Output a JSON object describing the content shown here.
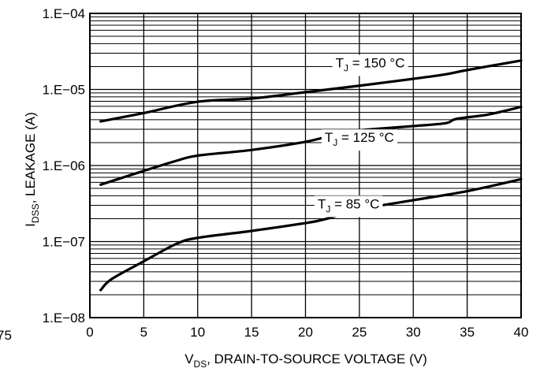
{
  "chart_data": {
    "type": "line",
    "title": "",
    "xlabel": {
      "main": "V",
      "sub": "DS",
      "rest": ", DRAIN-TO-SOURCE VOLTAGE (V)"
    },
    "ylabel": {
      "main": "I",
      "sub": "DSS",
      "rest": ", LEAKAGE (A)"
    },
    "xlim": [
      0,
      40
    ],
    "ylim": [
      1e-08,
      0.0001
    ],
    "yscale": "log",
    "grid": true,
    "x_ticks": [
      0,
      5,
      10,
      15,
      20,
      25,
      30,
      35,
      40
    ],
    "x_tick_labels": [
      "0",
      "5",
      "10",
      "15",
      "20",
      "25",
      "30",
      "35",
      "40"
    ],
    "y_ticks": [
      1e-08,
      1e-07,
      1e-06,
      1e-05,
      0.0001
    ],
    "y_tick_labels": [
      "1.E−08",
      "1.E−07",
      "1.E−06",
      "1.E−05",
      "1.E−04"
    ],
    "left_edge_fragment": "75",
    "series": [
      {
        "name": "T_J = 150 °C",
        "label": {
          "pre": "T",
          "sub": "J",
          "post": " = 150 °C"
        },
        "x": [
          1,
          5,
          10,
          15,
          20,
          25,
          30,
          33,
          35,
          40
        ],
        "y": [
          3.8e-06,
          4.9e-06,
          6.9e-06,
          7.6e-06,
          9.2e-06,
          1.12e-05,
          1.38e-05,
          1.58e-05,
          1.8e-05,
          2.4e-05
        ]
      },
      {
        "name": "T_J = 125 °C",
        "label": {
          "pre": "T",
          "sub": "J",
          "post": " = 125 °C"
        },
        "x": [
          1,
          5,
          8,
          10,
          15,
          20,
          23,
          25,
          30,
          33,
          34,
          37,
          40
        ],
        "y": [
          5.6e-07,
          8.5e-07,
          1.15e-06,
          1.35e-06,
          1.6e-06,
          2.05e-06,
          2.6e-06,
          2.9e-06,
          3.3e-06,
          3.6e-06,
          4.1e-06,
          4.7e-06,
          5.9e-06
        ]
      },
      {
        "name": "T_J = 85 °C",
        "label": {
          "pre": "T",
          "sub": "J",
          "post": " = 85 °C"
        },
        "x": [
          1,
          2,
          5,
          8,
          10,
          15,
          20,
          22,
          25,
          30,
          35,
          40
        ],
        "y": [
          2.3e-08,
          3.2e-08,
          5.5e-08,
          9.3e-08,
          1.12e-07,
          1.38e-07,
          1.75e-07,
          2e-07,
          2.65e-07,
          3.5e-07,
          4.6e-07,
          6.6e-07
        ]
      }
    ]
  }
}
